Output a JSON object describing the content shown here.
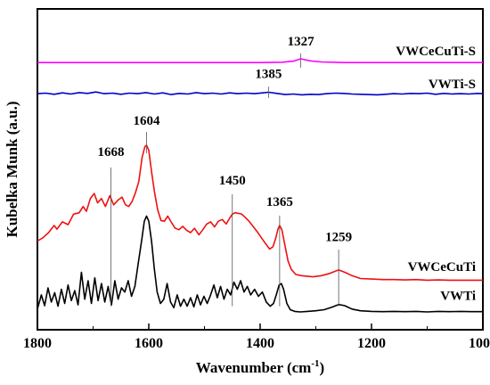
{
  "chart_data": {
    "type": "line",
    "xlabel": "Wavenumber (cm",
    "xlabel_sup": "-1",
    "xlabel_close": ")",
    "ylabel": "Kubelka Munk (a.u.)",
    "xlim": [
      1800,
      1000
    ],
    "x_reversed": true,
    "ylim": [
      0,
      1
    ],
    "y_ticks_shown": false,
    "grid": false,
    "x_ticks": [
      1800,
      1600,
      1400,
      1200,
      1000
    ],
    "x_tick_labels": [
      "1800",
      "1600",
      "1400",
      "1200",
      "1000"
    ],
    "series": [
      {
        "name": "VWCeCuTi-S",
        "color": "#ff00ff",
        "points": [
          [
            1800,
            0.88
          ],
          [
            1700,
            0.88
          ],
          [
            1600,
            0.88
          ],
          [
            1500,
            0.88
          ],
          [
            1400,
            0.88
          ],
          [
            1360,
            0.881
          ],
          [
            1340,
            0.885
          ],
          [
            1327,
            0.893
          ],
          [
            1310,
            0.886
          ],
          [
            1290,
            0.882
          ],
          [
            1250,
            0.88
          ],
          [
            1150,
            0.88
          ],
          [
            1000,
            0.88
          ]
        ]
      },
      {
        "name": "VWTi-S",
        "color": "#0000cc",
        "points": [
          [
            1800,
            0.77
          ],
          [
            1785,
            0.772
          ],
          [
            1770,
            0.768
          ],
          [
            1755,
            0.773
          ],
          [
            1740,
            0.769
          ],
          [
            1725,
            0.774
          ],
          [
            1710,
            0.771
          ],
          [
            1695,
            0.776
          ],
          [
            1680,
            0.77
          ],
          [
            1665,
            0.772
          ],
          [
            1650,
            0.768
          ],
          [
            1635,
            0.772
          ],
          [
            1620,
            0.77
          ],
          [
            1605,
            0.774
          ],
          [
            1590,
            0.769
          ],
          [
            1575,
            0.773
          ],
          [
            1560,
            0.767
          ],
          [
            1545,
            0.771
          ],
          [
            1530,
            0.769
          ],
          [
            1515,
            0.774
          ],
          [
            1500,
            0.77
          ],
          [
            1485,
            0.772
          ],
          [
            1470,
            0.769
          ],
          [
            1455,
            0.773
          ],
          [
            1440,
            0.77
          ],
          [
            1425,
            0.772
          ],
          [
            1410,
            0.77
          ],
          [
            1395,
            0.773
          ],
          [
            1385,
            0.775
          ],
          [
            1370,
            0.771
          ],
          [
            1355,
            0.767
          ],
          [
            1340,
            0.769
          ],
          [
            1325,
            0.766
          ],
          [
            1310,
            0.768
          ],
          [
            1295,
            0.767
          ],
          [
            1280,
            0.77
          ],
          [
            1265,
            0.772
          ],
          [
            1250,
            0.771
          ],
          [
            1235,
            0.769
          ],
          [
            1220,
            0.768
          ],
          [
            1205,
            0.767
          ],
          [
            1190,
            0.766
          ],
          [
            1175,
            0.768
          ],
          [
            1160,
            0.77
          ],
          [
            1145,
            0.769
          ],
          [
            1130,
            0.771
          ],
          [
            1115,
            0.77
          ],
          [
            1100,
            0.772
          ],
          [
            1085,
            0.768
          ],
          [
            1070,
            0.771
          ],
          [
            1055,
            0.769
          ],
          [
            1040,
            0.77
          ],
          [
            1025,
            0.769
          ],
          [
            1010,
            0.771
          ],
          [
            1000,
            0.77
          ]
        ]
      },
      {
        "name": "VWCeCuTi",
        "color": "#ee1111",
        "points": [
          [
            1800,
            0.25
          ],
          [
            1790,
            0.262
          ],
          [
            1780,
            0.28
          ],
          [
            1770,
            0.305
          ],
          [
            1765,
            0.292
          ],
          [
            1755,
            0.318
          ],
          [
            1745,
            0.308
          ],
          [
            1735,
            0.345
          ],
          [
            1725,
            0.35
          ],
          [
            1718,
            0.372
          ],
          [
            1712,
            0.355
          ],
          [
            1705,
            0.4
          ],
          [
            1698,
            0.418
          ],
          [
            1692,
            0.385
          ],
          [
            1685,
            0.4
          ],
          [
            1678,
            0.372
          ],
          [
            1670,
            0.41
          ],
          [
            1663,
            0.378
          ],
          [
            1655,
            0.395
          ],
          [
            1648,
            0.405
          ],
          [
            1642,
            0.378
          ],
          [
            1636,
            0.372
          ],
          [
            1630,
            0.39
          ],
          [
            1624,
            0.42
          ],
          [
            1618,
            0.46
          ],
          [
            1612,
            0.545
          ],
          [
            1607,
            0.583
          ],
          [
            1604,
            0.588
          ],
          [
            1600,
            0.57
          ],
          [
            1595,
            0.495
          ],
          [
            1590,
            0.425
          ],
          [
            1584,
            0.36
          ],
          [
            1578,
            0.322
          ],
          [
            1572,
            0.32
          ],
          [
            1566,
            0.338
          ],
          [
            1560,
            0.318
          ],
          [
            1553,
            0.296
          ],
          [
            1546,
            0.29
          ],
          [
            1539,
            0.302
          ],
          [
            1532,
            0.288
          ],
          [
            1525,
            0.28
          ],
          [
            1518,
            0.295
          ],
          [
            1510,
            0.272
          ],
          [
            1503,
            0.29
          ],
          [
            1496,
            0.31
          ],
          [
            1489,
            0.318
          ],
          [
            1482,
            0.3
          ],
          [
            1475,
            0.32
          ],
          [
            1468,
            0.326
          ],
          [
            1461,
            0.31
          ],
          [
            1455,
            0.33
          ],
          [
            1450,
            0.345
          ],
          [
            1445,
            0.35
          ],
          [
            1440,
            0.348
          ],
          [
            1434,
            0.346
          ],
          [
            1428,
            0.336
          ],
          [
            1420,
            0.32
          ],
          [
            1412,
            0.3
          ],
          [
            1405,
            0.282
          ],
          [
            1398,
            0.262
          ],
          [
            1390,
            0.24
          ],
          [
            1383,
            0.222
          ],
          [
            1377,
            0.23
          ],
          [
            1372,
            0.26
          ],
          [
            1368,
            0.292
          ],
          [
            1365,
            0.305
          ],
          [
            1361,
            0.29
          ],
          [
            1356,
            0.24
          ],
          [
            1350,
            0.18
          ],
          [
            1344,
            0.15
          ],
          [
            1336,
            0.132
          ],
          [
            1326,
            0.128
          ],
          [
            1316,
            0.126
          ],
          [
            1305,
            0.124
          ],
          [
            1290,
            0.128
          ],
          [
            1275,
            0.136
          ],
          [
            1259,
            0.148
          ],
          [
            1248,
            0.14
          ],
          [
            1235,
            0.128
          ],
          [
            1220,
            0.118
          ],
          [
            1200,
            0.116
          ],
          [
            1180,
            0.114
          ],
          [
            1160,
            0.114
          ],
          [
            1140,
            0.113
          ],
          [
            1120,
            0.114
          ],
          [
            1100,
            0.112
          ],
          [
            1080,
            0.113
          ],
          [
            1060,
            0.112
          ],
          [
            1040,
            0.112
          ],
          [
            1020,
            0.112
          ],
          [
            1000,
            0.112
          ]
        ]
      },
      {
        "name": "VWTi",
        "color": "#000000",
        "points": [
          [
            1800,
            0.01
          ],
          [
            1793,
            0.06
          ],
          [
            1787,
            0.022
          ],
          [
            1781,
            0.085
          ],
          [
            1775,
            0.035
          ],
          [
            1769,
            0.068
          ],
          [
            1763,
            0.02
          ],
          [
            1757,
            0.08
          ],
          [
            1751,
            0.03
          ],
          [
            1745,
            0.095
          ],
          [
            1739,
            0.04
          ],
          [
            1733,
            0.075
          ],
          [
            1727,
            0.025
          ],
          [
            1721,
            0.14
          ],
          [
            1715,
            0.045
          ],
          [
            1709,
            0.11
          ],
          [
            1703,
            0.03
          ],
          [
            1697,
            0.12
          ],
          [
            1691,
            0.04
          ],
          [
            1685,
            0.1
          ],
          [
            1679,
            0.035
          ],
          [
            1673,
            0.09
          ],
          [
            1667,
            0.025
          ],
          [
            1661,
            0.11
          ],
          [
            1655,
            0.045
          ],
          [
            1649,
            0.085
          ],
          [
            1643,
            0.07
          ],
          [
            1637,
            0.11
          ],
          [
            1631,
            0.055
          ],
          [
            1625,
            0.09
          ],
          [
            1619,
            0.17
          ],
          [
            1613,
            0.25
          ],
          [
            1608,
            0.32
          ],
          [
            1604,
            0.338
          ],
          [
            1600,
            0.32
          ],
          [
            1595,
            0.25
          ],
          [
            1590,
            0.15
          ],
          [
            1585,
            0.07
          ],
          [
            1579,
            0.03
          ],
          [
            1573,
            0.045
          ],
          [
            1567,
            0.1
          ],
          [
            1561,
            0.035
          ],
          [
            1555,
            0.015
          ],
          [
            1549,
            0.06
          ],
          [
            1543,
            0.02
          ],
          [
            1537,
            0.045
          ],
          [
            1531,
            0.02
          ],
          [
            1525,
            0.05
          ],
          [
            1519,
            0.018
          ],
          [
            1513,
            0.06
          ],
          [
            1507,
            0.025
          ],
          [
            1501,
            0.055
          ],
          [
            1495,
            0.03
          ],
          [
            1489,
            0.06
          ],
          [
            1483,
            0.095
          ],
          [
            1477,
            0.05
          ],
          [
            1471,
            0.09
          ],
          [
            1465,
            0.045
          ],
          [
            1459,
            0.08
          ],
          [
            1453,
            0.06
          ],
          [
            1447,
            0.105
          ],
          [
            1441,
            0.08
          ],
          [
            1435,
            0.11
          ],
          [
            1429,
            0.07
          ],
          [
            1423,
            0.09
          ],
          [
            1417,
            0.06
          ],
          [
            1410,
            0.08
          ],
          [
            1403,
            0.055
          ],
          [
            1396,
            0.07
          ],
          [
            1389,
            0.035
          ],
          [
            1382,
            0.02
          ],
          [
            1376,
            0.03
          ],
          [
            1371,
            0.06
          ],
          [
            1366,
            0.095
          ],
          [
            1362,
            0.1
          ],
          [
            1358,
            0.08
          ],
          [
            1352,
            0.03
          ],
          [
            1346,
            0.008
          ],
          [
            1338,
            0.002
          ],
          [
            1328,
            0.0
          ],
          [
            1315,
            0.002
          ],
          [
            1300,
            0.004
          ],
          [
            1285,
            0.008
          ],
          [
            1272,
            0.016
          ],
          [
            1259,
            0.026
          ],
          [
            1248,
            0.022
          ],
          [
            1235,
            0.01
          ],
          [
            1220,
            0.004
          ],
          [
            1200,
            0.002
          ],
          [
            1180,
            0.001
          ],
          [
            1160,
            0.002
          ],
          [
            1140,
            0.001
          ],
          [
            1120,
            0.002
          ],
          [
            1100,
            0.0
          ],
          [
            1080,
            0.002
          ],
          [
            1060,
            0.001
          ],
          [
            1040,
            0.002
          ],
          [
            1020,
            0.001
          ],
          [
            1000,
            0.001
          ]
        ]
      }
    ],
    "peak_annotations": [
      {
        "label": "1327",
        "x": 1327,
        "line_from": 0.862,
        "line_to": 0.912,
        "text_y": 0.94
      },
      {
        "label": "1385",
        "x": 1385,
        "line_from": 0.755,
        "line_to": 0.795,
        "text_y": 0.825
      },
      {
        "label": "1604",
        "x": 1604,
        "line_from": 0.56,
        "line_to": 0.635,
        "text_y": 0.66
      },
      {
        "label": "1668",
        "x": 1668,
        "line_from": 0.02,
        "line_to": 0.51,
        "text_y": 0.55
      },
      {
        "label": "1450",
        "x": 1450,
        "line_from": 0.02,
        "line_to": 0.415,
        "text_y": 0.45
      },
      {
        "label": "1365",
        "x": 1365,
        "line_from": 0.02,
        "line_to": 0.34,
        "text_y": 0.375
      },
      {
        "label": "1259",
        "x": 1259,
        "line_from": 0.02,
        "line_to": 0.22,
        "text_y": 0.25
      }
    ],
    "series_labels": [
      {
        "text": "VWCeCuTi-S",
        "y": 0.905
      },
      {
        "text": "VWTi-S",
        "y": 0.79
      },
      {
        "text": "VWCeCuTi",
        "y": 0.145
      },
      {
        "text": "VWTi",
        "y": 0.042
      }
    ]
  }
}
